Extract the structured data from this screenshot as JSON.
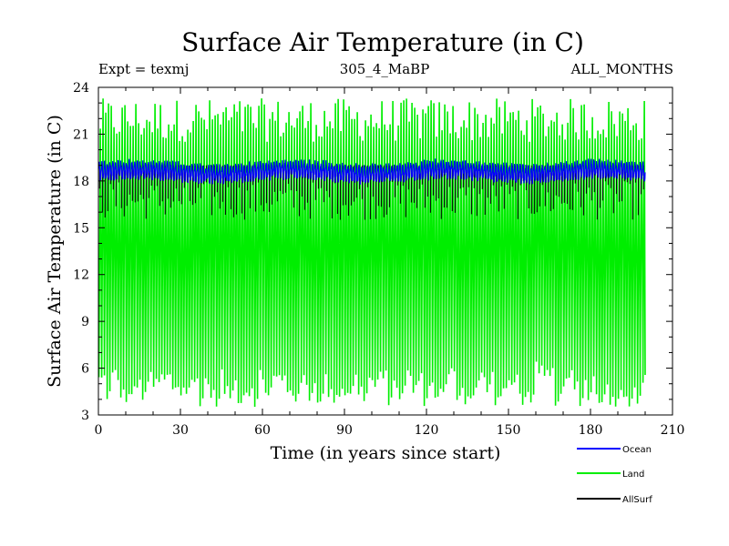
{
  "chart_data": {
    "type": "line",
    "title": "Surface Air Temperature (in C)",
    "subtitle_left": "Expt = texmj",
    "subtitle_center": "305_4_MaBP",
    "subtitle_right": "ALL_MONTHS",
    "xlabel": "Time (in years since start)",
    "ylabel": "Surface Air Temperature (in C)",
    "xlim": [
      0,
      210
    ],
    "ylim": [
      3,
      24
    ],
    "x_ticks": [
      0,
      30,
      60,
      90,
      120,
      150,
      180,
      210
    ],
    "y_ticks": [
      3,
      6,
      9,
      12,
      15,
      18,
      21,
      24
    ],
    "x_end": 200,
    "series": [
      {
        "name": "Ocean",
        "color": "#0000ff",
        "mean": 18.6,
        "seasonal_amplitude": 0.45,
        "noise": 0.25
      },
      {
        "name": "Land",
        "color": "#00ee00",
        "min_range": [
          3.5,
          6.5
        ],
        "max_range": [
          20.5,
          23.3
        ]
      },
      {
        "name": "AllSurf",
        "color": "#000000",
        "max_level": 19.0,
        "min_range": [
          15.5,
          18.0
        ]
      }
    ]
  }
}
